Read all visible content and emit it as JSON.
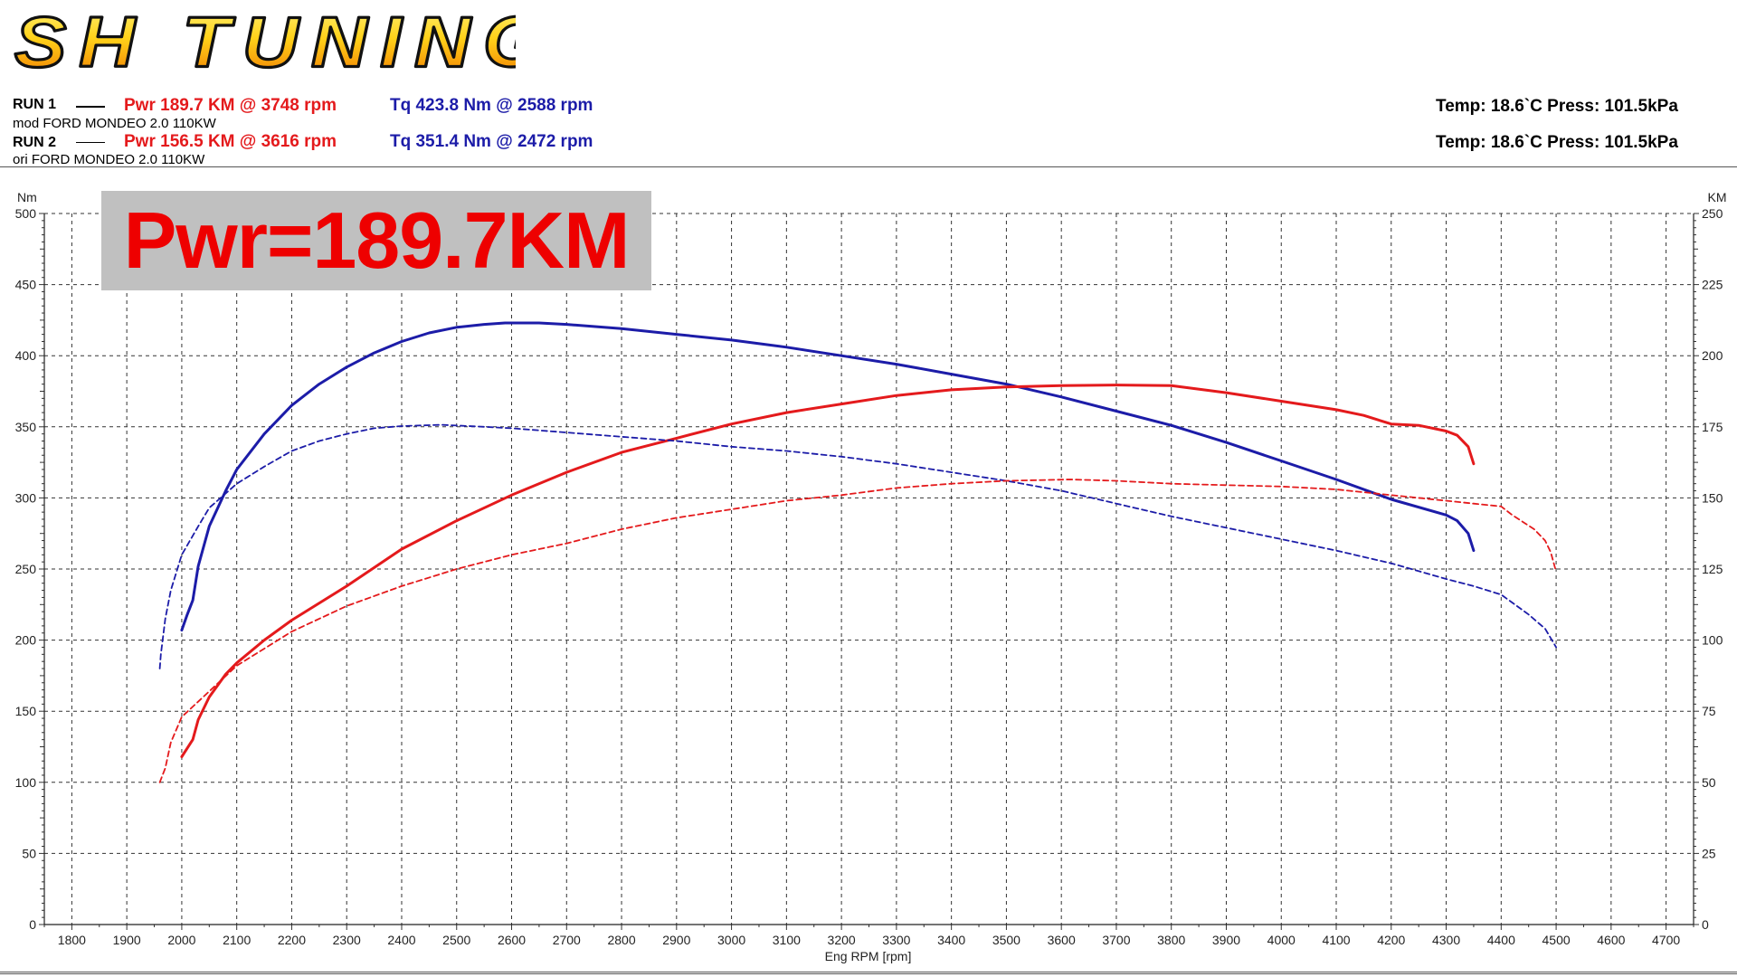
{
  "header": {
    "logo_text": "SH TUNING",
    "run1": {
      "label": "RUN 1",
      "desc": "mod FORD MONDEO 2.0 110KW",
      "power": "Pwr  189.7 KM @ 3748 rpm",
      "torque": "Tq 423.8 Nm @ 2588 rpm",
      "conditions": "Temp: 18.6`C    Press: 101.5kPa"
    },
    "run2": {
      "label": "RUN 2",
      "desc": "ori FORD MONDEO 2.0 110KW",
      "power": "Pwr  156.5 KM @ 3616 rpm",
      "torque": "Tq 351.4 Nm @ 2472 rpm",
      "conditions": "Temp: 18.6`C    Press: 101.5kPa"
    }
  },
  "badge": {
    "text": "Pwr=189.7KM"
  },
  "colors": {
    "power": "#e41a1c",
    "torque": "#1c1ca8",
    "badge_bg": "#c0c0c0",
    "badge_text": "#ee0000"
  },
  "chart_data": {
    "type": "line",
    "xlabel": "Eng RPM [rpm]",
    "ylabel_left": "Nm",
    "ylabel_right": "KM",
    "xlim": [
      1750,
      4750
    ],
    "ylim_left": [
      0,
      500
    ],
    "ylim_right": [
      0,
      250
    ],
    "x_ticks": [
      1800,
      1900,
      2000,
      2100,
      2200,
      2300,
      2400,
      2500,
      2600,
      2700,
      2800,
      2900,
      3000,
      3100,
      3200,
      3300,
      3400,
      3500,
      3600,
      3700,
      3800,
      3900,
      4000,
      4100,
      4200,
      4300,
      4400,
      4500,
      4600,
      4700
    ],
    "y_ticks_left": [
      0,
      50,
      100,
      150,
      200,
      250,
      300,
      350,
      400,
      450,
      500
    ],
    "y_ticks_right": [
      0,
      25,
      50,
      75,
      100,
      125,
      150,
      175,
      200,
      225,
      250
    ],
    "grid": true,
    "series": [
      {
        "run": "RUN 1",
        "quantity": "torque",
        "axis": "left",
        "style": "solid",
        "color": "#1c1ca8",
        "points": [
          [
            2000,
            207
          ],
          [
            2010,
            218
          ],
          [
            2020,
            228
          ],
          [
            2030,
            252
          ],
          [
            2050,
            280
          ],
          [
            2080,
            305
          ],
          [
            2100,
            320
          ],
          [
            2150,
            345
          ],
          [
            2200,
            365
          ],
          [
            2250,
            380
          ],
          [
            2300,
            392
          ],
          [
            2350,
            402
          ],
          [
            2400,
            410
          ],
          [
            2450,
            416
          ],
          [
            2500,
            420
          ],
          [
            2550,
            422
          ],
          [
            2588,
            423
          ],
          [
            2650,
            423
          ],
          [
            2700,
            422
          ],
          [
            2800,
            419
          ],
          [
            2900,
            415
          ],
          [
            3000,
            411
          ],
          [
            3100,
            406
          ],
          [
            3200,
            400
          ],
          [
            3300,
            394
          ],
          [
            3400,
            387
          ],
          [
            3500,
            380
          ],
          [
            3600,
            371
          ],
          [
            3700,
            361
          ],
          [
            3800,
            351
          ],
          [
            3900,
            339
          ],
          [
            4000,
            326
          ],
          [
            4100,
            313
          ],
          [
            4200,
            299
          ],
          [
            4300,
            288
          ],
          [
            4320,
            284
          ],
          [
            4340,
            275
          ],
          [
            4350,
            263
          ]
        ]
      },
      {
        "run": "RUN 1",
        "quantity": "power",
        "axis": "right",
        "style": "solid",
        "color": "#e41a1c",
        "points": [
          [
            2000,
            59
          ],
          [
            2010,
            62
          ],
          [
            2020,
            65
          ],
          [
            2030,
            72
          ],
          [
            2050,
            80
          ],
          [
            2080,
            88
          ],
          [
            2100,
            92
          ],
          [
            2150,
            100
          ],
          [
            2200,
            107
          ],
          [
            2300,
            119
          ],
          [
            2400,
            132
          ],
          [
            2500,
            142
          ],
          [
            2600,
            151
          ],
          [
            2700,
            159
          ],
          [
            2800,
            166
          ],
          [
            2900,
            171
          ],
          [
            3000,
            176
          ],
          [
            3100,
            180
          ],
          [
            3200,
            183
          ],
          [
            3300,
            186
          ],
          [
            3400,
            188
          ],
          [
            3500,
            189
          ],
          [
            3600,
            189.5
          ],
          [
            3700,
            189.7
          ],
          [
            3800,
            189.5
          ],
          [
            3900,
            187
          ],
          [
            4000,
            184
          ],
          [
            4100,
            181
          ],
          [
            4150,
            179
          ],
          [
            4200,
            176
          ],
          [
            4250,
            175.5
          ],
          [
            4300,
            173.5
          ],
          [
            4320,
            172
          ],
          [
            4340,
            168
          ],
          [
            4350,
            162
          ]
        ]
      },
      {
        "run": "RUN 2",
        "quantity": "torque",
        "axis": "left",
        "style": "dashed",
        "color": "#1c1ca8",
        "points": [
          [
            1960,
            180
          ],
          [
            1962,
            190
          ],
          [
            1970,
            215
          ],
          [
            1980,
            235
          ],
          [
            2000,
            260
          ],
          [
            2030,
            280
          ],
          [
            2050,
            293
          ],
          [
            2100,
            310
          ],
          [
            2150,
            322
          ],
          [
            2200,
            333
          ],
          [
            2250,
            340
          ],
          [
            2300,
            345
          ],
          [
            2350,
            349
          ],
          [
            2400,
            350.5
          ],
          [
            2472,
            351.4
          ],
          [
            2550,
            350
          ],
          [
            2600,
            349
          ],
          [
            2700,
            346
          ],
          [
            2800,
            343
          ],
          [
            2900,
            340
          ],
          [
            3000,
            336
          ],
          [
            3100,
            333
          ],
          [
            3200,
            329
          ],
          [
            3300,
            324
          ],
          [
            3400,
            318
          ],
          [
            3500,
            312
          ],
          [
            3600,
            305
          ],
          [
            3700,
            296
          ],
          [
            3800,
            287
          ],
          [
            3900,
            279
          ],
          [
            4000,
            271
          ],
          [
            4100,
            263
          ],
          [
            4200,
            254
          ],
          [
            4300,
            243
          ],
          [
            4350,
            238
          ],
          [
            4400,
            232
          ],
          [
            4450,
            218
          ],
          [
            4480,
            208
          ],
          [
            4500,
            195
          ]
        ]
      },
      {
        "run": "RUN 2",
        "quantity": "power",
        "axis": "right",
        "style": "dashed",
        "color": "#e41a1c",
        "points": [
          [
            1960,
            50
          ],
          [
            1970,
            55
          ],
          [
            1980,
            64
          ],
          [
            2000,
            73
          ],
          [
            2050,
            82
          ],
          [
            2100,
            91
          ],
          [
            2200,
            103
          ],
          [
            2300,
            112
          ],
          [
            2400,
            119
          ],
          [
            2500,
            125
          ],
          [
            2600,
            130
          ],
          [
            2700,
            134
          ],
          [
            2800,
            139
          ],
          [
            2900,
            143
          ],
          [
            3000,
            146
          ],
          [
            3100,
            149
          ],
          [
            3200,
            151
          ],
          [
            3300,
            153.5
          ],
          [
            3400,
            155
          ],
          [
            3500,
            156
          ],
          [
            3616,
            156.5
          ],
          [
            3700,
            156
          ],
          [
            3800,
            155
          ],
          [
            3900,
            154.5
          ],
          [
            4000,
            154
          ],
          [
            4100,
            153
          ],
          [
            4200,
            151
          ],
          [
            4300,
            149
          ],
          [
            4350,
            148
          ],
          [
            4400,
            147
          ],
          [
            4420,
            144
          ],
          [
            4460,
            139
          ],
          [
            4480,
            135
          ],
          [
            4490,
            131
          ],
          [
            4500,
            124
          ]
        ]
      }
    ]
  }
}
